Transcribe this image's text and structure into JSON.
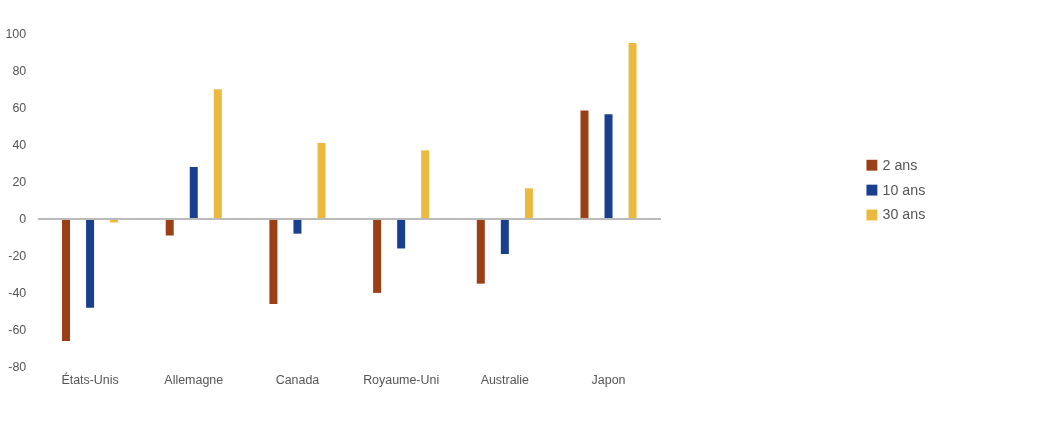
{
  "chart_data": {
    "type": "bar",
    "categories": [
      "États-Unis",
      "Allemagne",
      "Canada",
      "Royaume-Uni",
      "Australie",
      "Japon"
    ],
    "series": [
      {
        "name": "2 ans",
        "color": "#9b3f17",
        "values": [
          -66,
          -9,
          -46,
          -40,
          -35,
          58.5
        ]
      },
      {
        "name": "10 ans",
        "color": "#1b3f8f",
        "values": [
          -48,
          28,
          -8,
          -16,
          -19,
          56.5
        ]
      },
      {
        "name": "30 ans",
        "color": "#ecb940",
        "values": [
          -2,
          70,
          41,
          37,
          16.5,
          95
        ]
      }
    ],
    "ylim": [
      -80,
      100
    ],
    "yticks": [
      -80,
      -60,
      -40,
      -20,
      0,
      20,
      40,
      60,
      80,
      100
    ],
    "grid": false,
    "legend": "right",
    "ref_lines": [
      {
        "axis": "y",
        "value": 0,
        "color": "#bbbbbb"
      }
    ]
  }
}
